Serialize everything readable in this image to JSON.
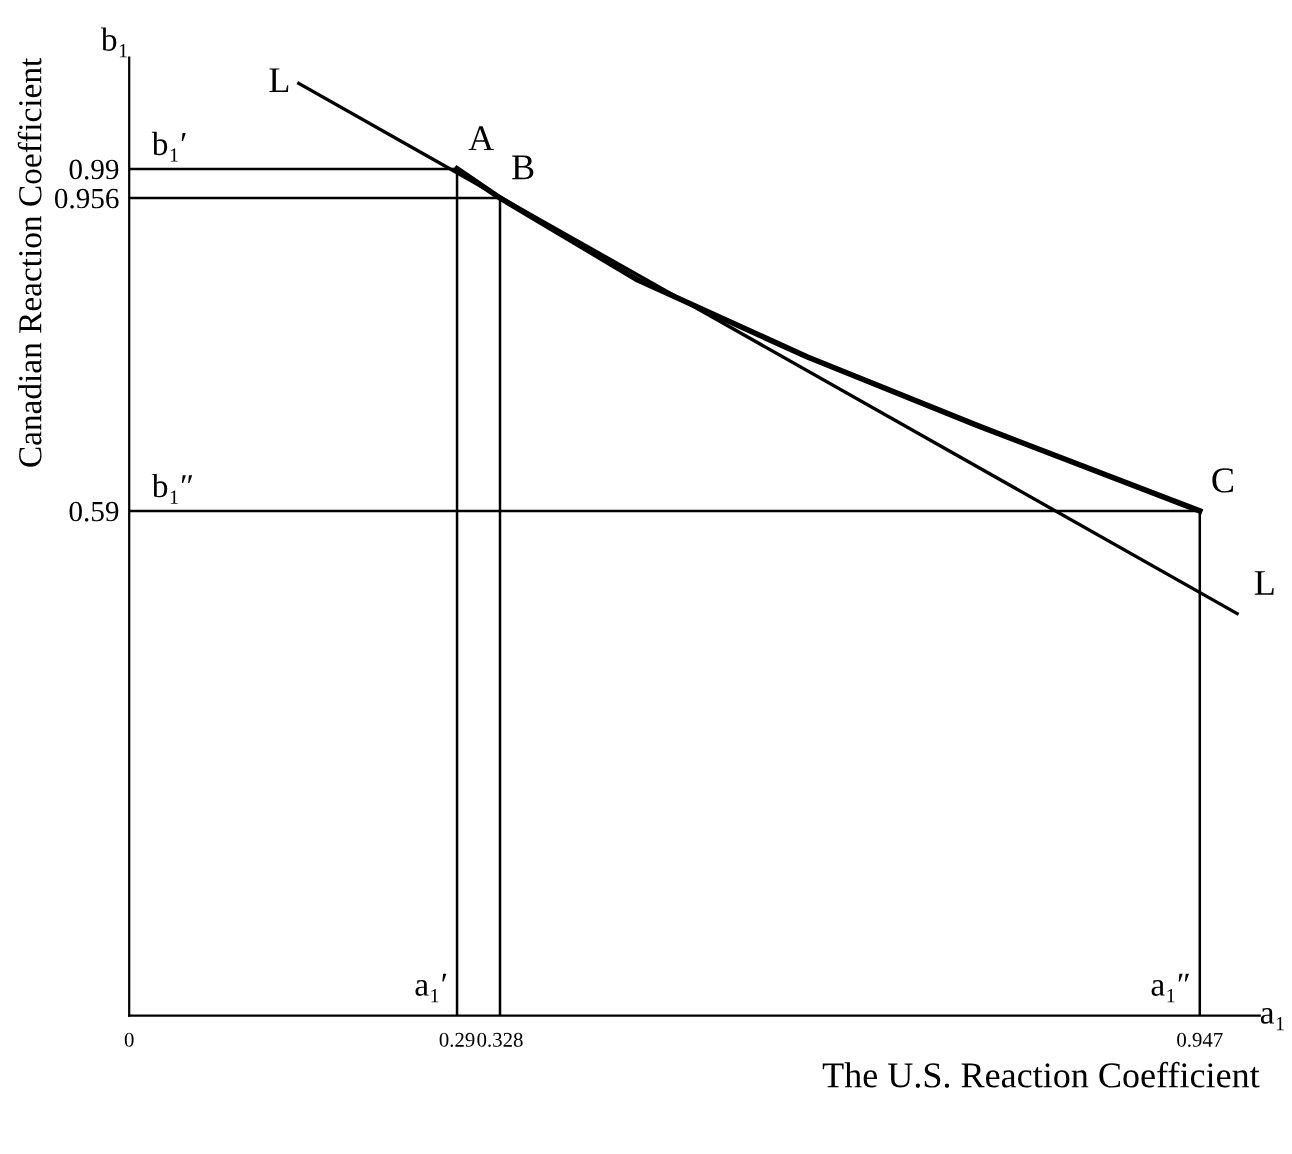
{
  "chart_data": {
    "type": "line",
    "xlabel": "The U.S. Reaction Coefficient",
    "ylabel": "Canadian Reaction Coefficient",
    "series": [
      {
        "color": "#000000",
        "x": [
          0.29,
          0.328,
          0.45,
          0.6,
          0.75,
          0.947
        ],
        "values": [
          0.99,
          0.956,
          0.86,
          0.77,
          0.69,
          0.59
        ]
      },
      {
        "color": "#000000",
        "x": [
          0.15,
          0.98
        ],
        "values": [
          1.09,
          0.47
        ]
      }
    ],
    "xlim": [
      0,
      1.0
    ],
    "ylim": [
      0,
      1.12
    ],
    "xticks": [
      0,
      0.29,
      0.328,
      0.947
    ],
    "yticks": [
      0.59,
      0.956,
      0.99
    ],
    "ref_lines": [
      {
        "axis": "x",
        "value": 0.29,
        "label": "a₁′"
      },
      {
        "axis": "x",
        "value": 0.328
      },
      {
        "axis": "x",
        "value": 0.947,
        "label": "a₁″"
      },
      {
        "axis": "y",
        "value": 0.99,
        "label": "b₁′"
      },
      {
        "axis": "y",
        "value": 0.956
      },
      {
        "axis": "y",
        "value": 0.59,
        "label": "b₁″"
      }
    ],
    "annotations": [
      {
        "text": "A",
        "x": 0.29,
        "y": 0.99
      },
      {
        "text": "B",
        "x": 0.328,
        "y": 0.956
      },
      {
        "text": "C",
        "x": 0.947,
        "y": 0.59
      },
      {
        "text": "L",
        "x": 0.15,
        "y": 1.09
      },
      {
        "text": "L",
        "x": 0.98,
        "y": 0.47
      },
      "a₁",
      "b₁"
    ],
    "grid": false,
    "legend": false,
    "marker": "none",
    "line_style": "solid"
  }
}
